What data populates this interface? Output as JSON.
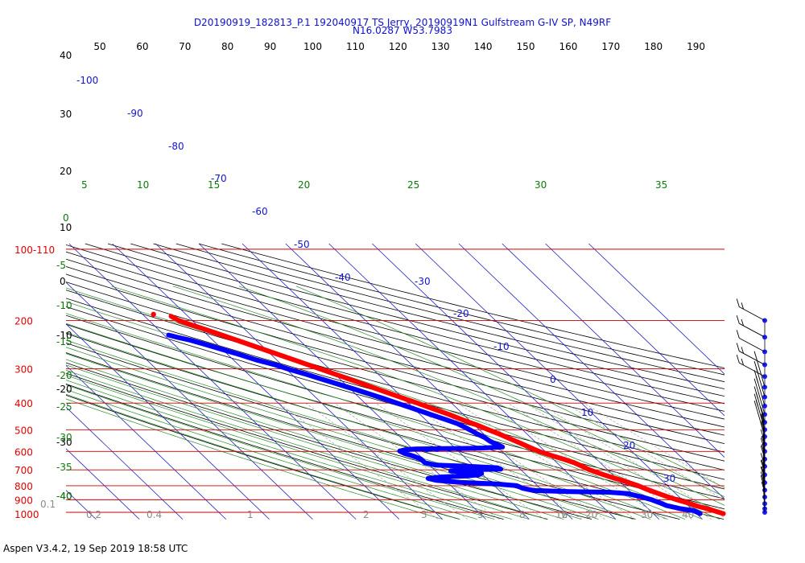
{
  "header": {
    "line1": "D20190919_182813_P.1 192040917 TS Jerry, 20190919N1 Gulfstream G-IV SP, N49RF",
    "line2": "N16.0287 W53.7983"
  },
  "footer": {
    "version": "Aspen V3.4.2, 19 Sep 2019  18:58 UTC"
  },
  "colors": {
    "temperature": "#ff0000",
    "dewpoint": "#0000ff",
    "isobar": "#cc0000",
    "isotherm": "#2020c0",
    "dry_adiabat": "#000000",
    "moist_adiabat": "#228b22",
    "mixing_ratio": "#a0a0a0",
    "barb": "#1a1aff"
  },
  "chart_data": {
    "type": "line",
    "title": "D20190919_182813_P.1 192040917 TS Jerry, 20190919N1 Gulfstream G-IV SP, N49RF",
    "subtitle": "N16.0287 W53.7983",
    "pressure_labels": [
      "100-110",
      "200",
      "300",
      "400",
      "500",
      "600",
      "700",
      "800",
      "900",
      "1000"
    ],
    "pressure_levels_hPa": [
      110,
      200,
      300,
      400,
      500,
      600,
      700,
      800,
      900,
      1000
    ],
    "top_axis_labels": [
      "50",
      "60",
      "70",
      "80",
      "90",
      "100",
      "110",
      "120",
      "130",
      "140",
      "150",
      "160",
      "170",
      "180",
      "190"
    ],
    "left_temp_labels": [
      "40",
      "30",
      "20",
      "10",
      "0",
      "-10",
      "-20",
      "-30",
      "-40"
    ],
    "isotherm_labels": [
      "-100",
      "-90",
      "-80",
      "-70",
      "-60",
      "-50",
      "-40",
      "-30",
      "-20",
      "-10",
      "0",
      "10",
      "20",
      "30"
    ],
    "dry_adiabat_labels": [
      "5",
      "10",
      "15",
      "20",
      "25",
      "30",
      "35"
    ],
    "moist_labels": [
      "0",
      "-5",
      "-10",
      "-15",
      "-20",
      "-25",
      "-30",
      "-35",
      "-40"
    ],
    "mixing_ratio_labels": [
      "0.1",
      "0.2",
      "0.4",
      "1",
      "2",
      "3",
      "5",
      "8",
      "12",
      "16",
      "20",
      "30",
      "40"
    ],
    "series": [
      {
        "name": "",
        "color": "#ff0000",
        "points": [
          {
            "p": 1011,
            "t": 26.2
          },
          {
            "p": 1000,
            "t": 25.5
          },
          {
            "p": 975,
            "t": 24.0
          },
          {
            "p": 950,
            "t": 22.0
          },
          {
            "p": 925,
            "t": 20.6
          },
          {
            "p": 900,
            "t": 18.8
          },
          {
            "p": 875,
            "t": 17.2
          },
          {
            "p": 850,
            "t": 15.8
          },
          {
            "p": 825,
            "t": 14.4
          },
          {
            "p": 800,
            "t": 13.2
          },
          {
            "p": 780,
            "t": 11.9
          },
          {
            "p": 760,
            "t": 10.3
          },
          {
            "p": 740,
            "t": 8.7
          },
          {
            "p": 720,
            "t": 7.2
          },
          {
            "p": 700,
            "t": 5.8
          },
          {
            "p": 685,
            "t": 5.2
          },
          {
            "p": 660,
            "t": 4.0
          },
          {
            "p": 640,
            "t": 2.4
          },
          {
            "p": 620,
            "t": 0.4
          },
          {
            "p": 600,
            "t": -1.4
          },
          {
            "p": 580,
            "t": -2.6
          },
          {
            "p": 560,
            "t": -3.7
          },
          {
            "p": 540,
            "t": -5.0
          },
          {
            "p": 520,
            "t": -6.3
          },
          {
            "p": 500,
            "t": -7.9
          },
          {
            "p": 480,
            "t": -9.5
          },
          {
            "p": 460,
            "t": -11.5
          },
          {
            "p": 440,
            "t": -13.3
          },
          {
            "p": 420,
            "t": -15.6
          },
          {
            "p": 400,
            "t": -17.9
          },
          {
            "p": 380,
            "t": -20.5
          },
          {
            "p": 360,
            "t": -23.2
          },
          {
            "p": 340,
            "t": -26.0
          },
          {
            "p": 320,
            "t": -29.0
          },
          {
            "p": 300,
            "t": -32.2
          },
          {
            "p": 280,
            "t": -35.7
          },
          {
            "p": 260,
            "t": -39.5
          },
          {
            "p": 240,
            "t": -43.6
          },
          {
            "p": 220,
            "t": -48.1
          },
          {
            "p": 210,
            "t": -50.6
          },
          {
            "p": 205,
            "t": -52.0
          },
          {
            "p": 200,
            "t": -53.1
          },
          {
            "p": 196,
            "t": -53.6
          },
          {
            "p": 193,
            "t": -53.9
          }
        ]
      },
      {
        "name": "",
        "color": "#0000ff",
        "points": [
          {
            "p": 1011,
            "t": 20.8
          },
          {
            "p": 1000,
            "t": 20.5
          },
          {
            "p": 985,
            "t": 20.0
          },
          {
            "p": 970,
            "t": 17.5
          },
          {
            "p": 945,
            "t": 15.0
          },
          {
            "p": 925,
            "t": 14.2
          },
          {
            "p": 900,
            "t": 13.0
          },
          {
            "p": 885,
            "t": 11.8
          },
          {
            "p": 870,
            "t": 10.5
          },
          {
            "p": 855,
            "t": 9.0
          },
          {
            "p": 845,
            "t": 5.0
          },
          {
            "p": 840,
            "t": -4.0
          },
          {
            "p": 833,
            "t": -12.0
          },
          {
            "p": 818,
            "t": -14.0
          },
          {
            "p": 800,
            "t": -14.8
          },
          {
            "p": 788,
            "t": -19.0
          },
          {
            "p": 778,
            "t": -27.0
          },
          {
            "p": 765,
            "t": -32.0
          },
          {
            "p": 752,
            "t": -33.5
          },
          {
            "p": 743,
            "t": -30.0
          },
          {
            "p": 737,
            "t": -24.0
          },
          {
            "p": 730,
            "t": -21.0
          },
          {
            "p": 722,
            "t": -20.0
          },
          {
            "p": 715,
            "t": -24.0
          },
          {
            "p": 706,
            "t": -26.5
          },
          {
            "p": 700,
            "t": -22.0
          },
          {
            "p": 696,
            "t": -14.5
          },
          {
            "p": 688,
            "t": -15.0
          },
          {
            "p": 680,
            "t": -21.5
          },
          {
            "p": 673,
            "t": -28.5
          },
          {
            "p": 660,
            "t": -30.5
          },
          {
            "p": 640,
            "t": -30.5
          },
          {
            "p": 625,
            "t": -31.5
          },
          {
            "p": 610,
            "t": -33.0
          },
          {
            "p": 598,
            "t": -33.5
          },
          {
            "p": 592,
            "t": -32.0
          },
          {
            "p": 588,
            "t": -29.5
          },
          {
            "p": 586,
            "t": -23.0
          },
          {
            "p": 585,
            "t": -17.0
          },
          {
            "p": 583,
            "t": -13.5
          },
          {
            "p": 578,
            "t": -8.8
          },
          {
            "p": 570,
            "t": -9.2
          },
          {
            "p": 560,
            "t": -9.8
          },
          {
            "p": 550,
            "t": -10.3
          },
          {
            "p": 535,
            "t": -10.6
          },
          {
            "p": 520,
            "t": -11.4
          },
          {
            "p": 505,
            "t": -12.0
          },
          {
            "p": 490,
            "t": -12.7
          },
          {
            "p": 475,
            "t": -13.6
          },
          {
            "p": 460,
            "t": -15.2
          },
          {
            "p": 445,
            "t": -17.0
          },
          {
            "p": 430,
            "t": -18.8
          },
          {
            "p": 415,
            "t": -20.6
          },
          {
            "p": 400,
            "t": -22.6
          },
          {
            "p": 385,
            "t": -24.6
          },
          {
            "p": 370,
            "t": -26.8
          },
          {
            "p": 355,
            "t": -29.2
          },
          {
            "p": 340,
            "t": -31.8
          },
          {
            "p": 326,
            "t": -34.4
          },
          {
            "p": 315,
            "t": -36.4
          },
          {
            "p": 302,
            "t": -39.2
          },
          {
            "p": 290,
            "t": -41.6
          },
          {
            "p": 278,
            "t": -44.8
          },
          {
            "p": 266,
            "t": -47.4
          },
          {
            "p": 256,
            "t": -49.8
          },
          {
            "p": 245,
            "t": -52.6
          },
          {
            "p": 236,
            "t": -55.2
          },
          {
            "p": 230,
            "t": -57.6
          },
          {
            "p": 226,
            "t": -59.0
          }
        ]
      }
    ],
    "isolated_points": [
      {
        "p": 190,
        "t": -57.5,
        "color": "#ff0000"
      },
      {
        "p": 588,
        "t": -26.0,
        "color": "#0000ff"
      }
    ],
    "wind_levels_hPa": [
      200,
      230,
      260,
      290,
      320,
      350,
      380,
      410,
      440,
      470,
      500,
      530,
      565,
      600,
      640,
      680,
      730,
      780,
      830,
      880,
      930,
      970,
      1000
    ]
  }
}
